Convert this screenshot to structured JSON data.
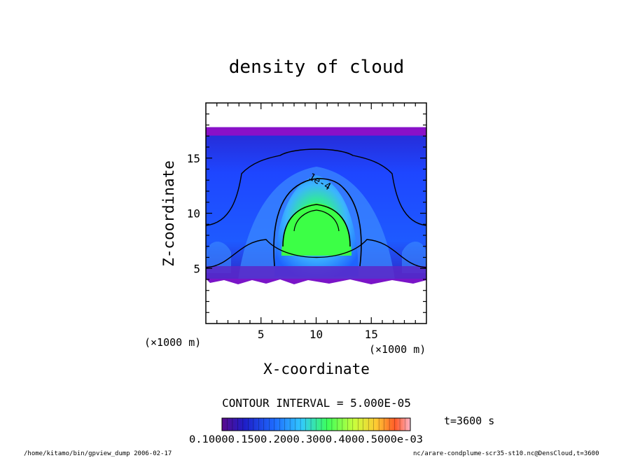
{
  "chart_data": {
    "type": "heatmap",
    "title": "density of cloud",
    "xlabel": "X-coordinate",
    "ylabel": "Z-coordinate",
    "x_unit": "(×1000 m)",
    "y_unit": "(×1000 m)",
    "xlim": [
      0,
      20
    ],
    "ylim": [
      0,
      20
    ],
    "x_ticks": [
      "5",
      "10",
      "15"
    ],
    "y_ticks": [
      "5",
      "10",
      "15"
    ],
    "contour_label": "1e-4",
    "contour_interval_text": "CONTOUR INTERVAL = 5.000E-05",
    "colorbar_tick_text": "0.10000.1500.2000.3000.4000.5000e-03",
    "colorbar_range": [
      0.0001,
      0.0005
    ],
    "time_label": "t=3600 s",
    "cloud_layer": {
      "bottom": 4,
      "top": 17.8
    },
    "colors": {
      "top_band": "#8a10c8",
      "blue": "#1e3cff",
      "cyan": "#46b4ff",
      "green": "#3cff3c"
    }
  },
  "footer": {
    "left": "/home/kitamo/bin/gpview_dump  2006-02-17",
    "right": "nc/arare-condplume-scr35-st10.nc@DensCloud,t=3600"
  }
}
